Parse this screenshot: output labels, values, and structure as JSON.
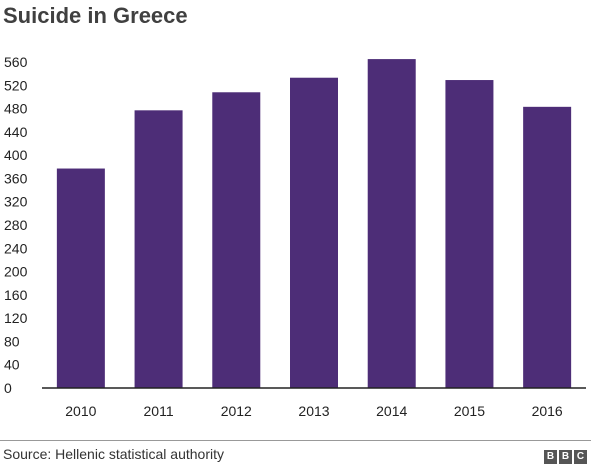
{
  "chart_data": {
    "type": "bar",
    "title": "Suicide in Greece",
    "categories": [
      "2010",
      "2011",
      "2012",
      "2013",
      "2014",
      "2015",
      "2016"
    ],
    "values": [
      377,
      477,
      508,
      533,
      565,
      529,
      483
    ],
    "ylim": [
      0,
      560
    ],
    "yticks": [
      0,
      40,
      80,
      120,
      160,
      200,
      240,
      280,
      320,
      360,
      400,
      440,
      480,
      520,
      560
    ],
    "grid": false,
    "bar_color": "#4d2d77"
  },
  "footer": {
    "source": "Source: Hellenic statistical authority",
    "logo_letters": [
      "B",
      "B",
      "C"
    ]
  }
}
